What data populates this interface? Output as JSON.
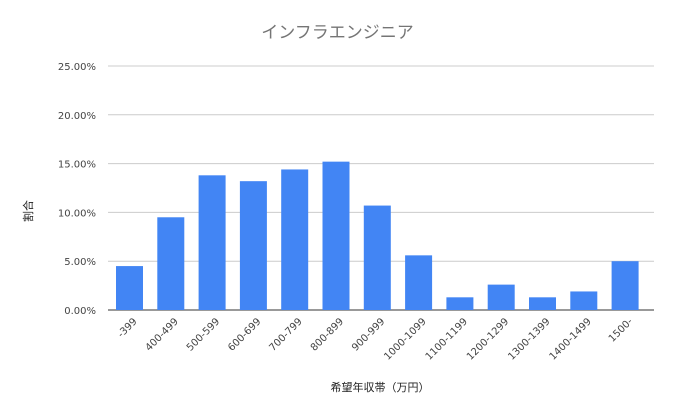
{
  "chart_data": {
    "type": "bar",
    "title": "インフラエンジニア",
    "xlabel": "希望年収帯（万円）",
    "ylabel": "割合",
    "categories": [
      "-399",
      "400-499",
      "500-599",
      "600-699",
      "700-799",
      "800-899",
      "900-999",
      "1000-1099",
      "1100-1199",
      "1200-1299",
      "1300-1399",
      "1400-1499",
      "1500-"
    ],
    "values": [
      4.5,
      9.5,
      13.8,
      13.2,
      14.4,
      15.2,
      10.7,
      5.6,
      1.3,
      2.6,
      1.3,
      1.9,
      5.0
    ],
    "value_unit": "%",
    "yticks": [
      "0.00%",
      "5.00%",
      "10.00%",
      "15.00%",
      "20.00%",
      "25.00%"
    ],
    "ylim": [
      0,
      25
    ],
    "grid": true,
    "legend": "none",
    "bar_color": "#4285F4",
    "grid_color": "#cccccc"
  }
}
